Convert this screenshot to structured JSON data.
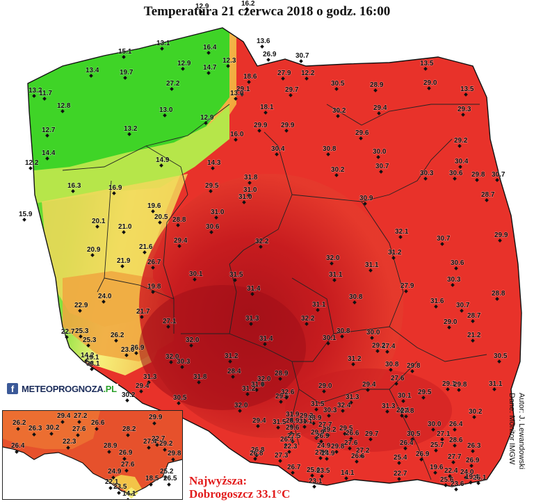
{
  "title": "Temperatura 21 czerwca 2018 o godz. 16:00",
  "logo": {
    "icon": "facebook-icon",
    "text_main": "METEOPROGNOZA",
    "text_suffix": ".PL"
  },
  "max_label": {
    "line1": "Najwyższa:",
    "line2": "Dobrogoszcz 33.1°C"
  },
  "credits": {
    "author": "Autor: J. Lewandowski",
    "data_source": "Dane: Monitor IMGW"
  },
  "colors": {
    "cold": "#2fd21f",
    "cool": "#8fe03a",
    "mild": "#f6f07a",
    "warm": "#f2a53a",
    "hot": "#e8322a",
    "hottest": "#b8141c"
  },
  "map_labels": [
    "12.9",
    "16.2",
    "13.6",
    "13.1",
    "16.4",
    "26.9",
    "30.7",
    "13.5",
    "15.1",
    "12.3",
    "12.9",
    "14.7",
    "18.6",
    "27.9",
    "12.2",
    "13.4",
    "19.7",
    "29.1",
    "29.7",
    "30.5",
    "28.9",
    "29.0",
    "13.5",
    "13.2",
    "11.7",
    "27.2",
    "13.0",
    "18.1",
    "12.8",
    "13.0",
    "29.9",
    "29.9",
    "30.2",
    "29.4",
    "29.3",
    "12.9",
    "12.7",
    "13.2",
    "16.0",
    "29.6",
    "29.2",
    "30.4",
    "14.4",
    "30.8",
    "30.0",
    "30.4",
    "12.2",
    "14.3",
    "14.9",
    "30.2",
    "30.7",
    "30.3",
    "30.6",
    "29.8",
    "30.7",
    "16.3",
    "16.9",
    "31.8",
    "29.5",
    "31.0",
    "30.9",
    "28.7",
    "15.9",
    "19.6",
    "31.0",
    "31.0",
    "20.1",
    "21.0",
    "20.5",
    "28.8",
    "30.6",
    "32.1",
    "29.9",
    "21.6",
    "32.2",
    "29.4",
    "31.2",
    "30.7",
    "20.9",
    "26.7",
    "32.0",
    "21.9",
    "31.1",
    "31.1",
    "30.6",
    "30.1",
    "31.5",
    "30.3",
    "19.8",
    "31.4",
    "27.9",
    "24.0",
    "22.9",
    "21.7",
    "31.6",
    "31.1",
    "30.8",
    "30.7",
    "28.8",
    "26.2",
    "27.1",
    "25.3",
    "31.3",
    "32.2",
    "30.8",
    "29.0",
    "28.7",
    "22.7",
    "30.0",
    "25.3",
    "26.9",
    "32.0",
    "31.4",
    "30.1",
    "27.4",
    "29.2",
    "21.2",
    "14.2",
    "19.1",
    "23.0",
    "33.1",
    "32.0",
    "31.2",
    "31.2",
    "30.8",
    "29.8",
    "29.1",
    "30.5",
    "30.3",
    "28.9",
    "32.0",
    "28.4",
    "31.3",
    "31.8",
    "27.6",
    "29.4",
    "30.2",
    "29.0",
    "29.5",
    "29.8",
    "31.1",
    "31.0",
    "29.4",
    "30.5",
    "31.2",
    "29.6",
    "32.6",
    "31.3",
    "30.1",
    "32.0",
    "31.5",
    "31.9",
    "32.4",
    "31.3",
    "26.1",
    "28.9",
    "30.3",
    "30.2",
    "29.4",
    "31.5",
    "28.9",
    "27.8",
    "29.2",
    "31.1",
    "30.0",
    "26.4",
    "27.7",
    "29.6",
    "29.5",
    "29.2",
    "26.6",
    "29.9",
    "29.7",
    "30.5",
    "27.1",
    "28.6",
    "26.8",
    "27.5",
    "26.9",
    "26.4",
    "22.3",
    "29.8",
    "24.9",
    "27.6",
    "26.4",
    "25.7",
    "26.3",
    "26.8",
    "27.3",
    "27.5",
    "24.9",
    "27.2",
    "26.9",
    "27.7",
    "26.6",
    "25.4",
    "26.9",
    "26.7",
    "25.6",
    "23.5",
    "14.1",
    "19.6",
    "22.4",
    "25.1",
    "24.0",
    "19.4",
    "25.6",
    "23.6",
    "22.7",
    "23.1"
  ],
  "inset_labels": [
    "26.2",
    "29.4",
    "27.2",
    "26.6",
    "29.9",
    "26.3",
    "30.2",
    "27.6",
    "28.2",
    "22.3",
    "22.7",
    "28.9",
    "27.4",
    "29.2",
    "26.4",
    "26.9",
    "29.8",
    "27.6",
    "24.9",
    "25.2",
    "26.5",
    "22.1",
    "18.5",
    "23.5",
    "14.1"
  ]
}
